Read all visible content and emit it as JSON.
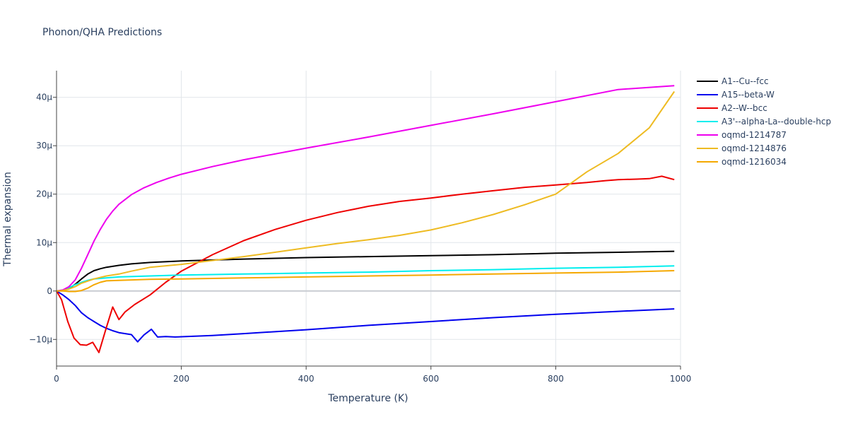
{
  "chart_data": {
    "type": "line",
    "title": "Phonon/QHA Predictions",
    "xlabel": "Temperature (K)",
    "ylabel": "Thermal expansion",
    "xlim": [
      0,
      1000
    ],
    "ylim": [
      -1.55e-05,
      4.55e-05
    ],
    "grid": true,
    "legend_position": "right",
    "x_ticks": [
      {
        "value": 0,
        "label": "0"
      },
      {
        "value": 200,
        "label": "200"
      },
      {
        "value": 400,
        "label": "400"
      },
      {
        "value": 600,
        "label": "600"
      },
      {
        "value": 800,
        "label": "800"
      },
      {
        "value": 1000,
        "label": "1000"
      }
    ],
    "y_ticks": [
      {
        "value": -1e-05,
        "label": "−10μ"
      },
      {
        "value": 0,
        "label": "0"
      },
      {
        "value": 1e-05,
        "label": "10μ"
      },
      {
        "value": 2e-05,
        "label": "20μ"
      },
      {
        "value": 3e-05,
        "label": "30μ"
      },
      {
        "value": 4e-05,
        "label": "40μ"
      }
    ],
    "series": [
      {
        "name": "A1--Cu--fcc",
        "color": "#000000",
        "points": [
          [
            0,
            0
          ],
          [
            10,
            1e-07
          ],
          [
            20,
            5e-07
          ],
          [
            30,
            1.4e-06
          ],
          [
            40,
            2.5e-06
          ],
          [
            50,
            3.5e-06
          ],
          [
            60,
            4.2e-06
          ],
          [
            70,
            4.6e-06
          ],
          [
            80,
            4.9e-06
          ],
          [
            100,
            5.3e-06
          ],
          [
            120,
            5.6e-06
          ],
          [
            150,
            5.9e-06
          ],
          [
            200,
            6.2e-06
          ],
          [
            300,
            6.6e-06
          ],
          [
            400,
            6.9e-06
          ],
          [
            500,
            7.1e-06
          ],
          [
            600,
            7.3e-06
          ],
          [
            700,
            7.5e-06
          ],
          [
            800,
            7.8e-06
          ],
          [
            900,
            8e-06
          ],
          [
            990,
            8.2e-06
          ]
        ]
      },
      {
        "name": "A15--beta-W",
        "color": "#0000ee",
        "points": [
          [
            0,
            0
          ],
          [
            10,
            -8e-07
          ],
          [
            20,
            -1.8e-06
          ],
          [
            30,
            -3e-06
          ],
          [
            40,
            -4.5e-06
          ],
          [
            50,
            -5.5e-06
          ],
          [
            60,
            -6.3e-06
          ],
          [
            70,
            -7.1e-06
          ],
          [
            80,
            -7.7e-06
          ],
          [
            90,
            -8.2e-06
          ],
          [
            100,
            -8.6e-06
          ],
          [
            110,
            -8.8e-06
          ],
          [
            120,
            -9e-06
          ],
          [
            130,
            -1.05e-05
          ],
          [
            140,
            -9.1e-06
          ],
          [
            152,
            -7.9e-06
          ],
          [
            162,
            -9.5e-06
          ],
          [
            175,
            -9.4e-06
          ],
          [
            190,
            -9.5e-06
          ],
          [
            250,
            -9.2e-06
          ],
          [
            300,
            -8.8e-06
          ],
          [
            400,
            -8e-06
          ],
          [
            500,
            -7.1e-06
          ],
          [
            600,
            -6.3e-06
          ],
          [
            700,
            -5.5e-06
          ],
          [
            800,
            -4.8e-06
          ],
          [
            900,
            -4.2e-06
          ],
          [
            990,
            -3.7e-06
          ]
        ]
      },
      {
        "name": "A2--W--bcc",
        "color": "#ee0000",
        "points": [
          [
            0,
            0
          ],
          [
            8,
            -1.8e-06
          ],
          [
            18,
            -6.3e-06
          ],
          [
            28,
            -9.7e-06
          ],
          [
            38,
            -1.11e-05
          ],
          [
            48,
            -1.12e-05
          ],
          [
            58,
            -1.06e-05
          ],
          [
            68,
            -1.27e-05
          ],
          [
            80,
            -7.5e-06
          ],
          [
            90,
            -3.3e-06
          ],
          [
            100,
            -5.9e-06
          ],
          [
            110,
            -4.3e-06
          ],
          [
            125,
            -2.8e-06
          ],
          [
            150,
            -8e-07
          ],
          [
            175,
            1.8e-06
          ],
          [
            200,
            4.1e-06
          ],
          [
            250,
            7.5e-06
          ],
          [
            300,
            1.04e-05
          ],
          [
            350,
            1.27e-05
          ],
          [
            400,
            1.46e-05
          ],
          [
            450,
            1.62e-05
          ],
          [
            500,
            1.75e-05
          ],
          [
            550,
            1.85e-05
          ],
          [
            600,
            1.92e-05
          ],
          [
            650,
            2e-05
          ],
          [
            700,
            2.07e-05
          ],
          [
            750,
            2.14e-05
          ],
          [
            800,
            2.19e-05
          ],
          [
            850,
            2.24e-05
          ],
          [
            880,
            2.28e-05
          ],
          [
            900,
            2.3e-05
          ],
          [
            930,
            2.31e-05
          ],
          [
            950,
            2.32e-05
          ],
          [
            970,
            2.37e-05
          ],
          [
            990,
            2.3e-05
          ]
        ]
      },
      {
        "name": "A3'--alpha-La--double-hcp",
        "color": "#00eeee",
        "points": [
          [
            0,
            0
          ],
          [
            10,
            2e-07
          ],
          [
            20,
            7e-07
          ],
          [
            30,
            1.3e-06
          ],
          [
            40,
            1.8e-06
          ],
          [
            50,
            2.2e-06
          ],
          [
            60,
            2.5e-06
          ],
          [
            80,
            2.7e-06
          ],
          [
            100,
            2.9e-06
          ],
          [
            150,
            3.1e-06
          ],
          [
            200,
            3.3e-06
          ],
          [
            300,
            3.5e-06
          ],
          [
            400,
            3.7e-06
          ],
          [
            500,
            3.9e-06
          ],
          [
            600,
            4.2e-06
          ],
          [
            700,
            4.4e-06
          ],
          [
            800,
            4.7e-06
          ],
          [
            900,
            4.9e-06
          ],
          [
            990,
            5.2e-06
          ]
        ]
      },
      {
        "name": "oqmd-1214787",
        "color": "#ee00ee",
        "points": [
          [
            0,
            0
          ],
          [
            10,
            2e-07
          ],
          [
            20,
            9e-07
          ],
          [
            30,
            2.3e-06
          ],
          [
            40,
            4.7e-06
          ],
          [
            50,
            7.5e-06
          ],
          [
            60,
            1.03e-05
          ],
          [
            70,
            1.27e-05
          ],
          [
            80,
            1.48e-05
          ],
          [
            90,
            1.65e-05
          ],
          [
            100,
            1.79e-05
          ],
          [
            120,
            1.99e-05
          ],
          [
            140,
            2.13e-05
          ],
          [
            160,
            2.24e-05
          ],
          [
            180,
            2.33e-05
          ],
          [
            200,
            2.41e-05
          ],
          [
            250,
            2.57e-05
          ],
          [
            300,
            2.71e-05
          ],
          [
            400,
            2.95e-05
          ],
          [
            500,
            3.18e-05
          ],
          [
            600,
            3.42e-05
          ],
          [
            700,
            3.66e-05
          ],
          [
            800,
            3.91e-05
          ],
          [
            900,
            4.16e-05
          ],
          [
            990,
            4.24e-05
          ]
        ]
      },
      {
        "name": "oqmd-1214876",
        "color": "#eebb22",
        "points": [
          [
            0,
            0
          ],
          [
            10,
            1e-07
          ],
          [
            20,
            4e-07
          ],
          [
            30,
            9e-07
          ],
          [
            40,
            1.6e-06
          ],
          [
            60,
            2.5e-06
          ],
          [
            80,
            3.1e-06
          ],
          [
            100,
            3.5e-06
          ],
          [
            120,
            4.1e-06
          ],
          [
            150,
            4.9e-06
          ],
          [
            200,
            5.5e-06
          ],
          [
            250,
            6.3e-06
          ],
          [
            300,
            7.1e-06
          ],
          [
            350,
            8e-06
          ],
          [
            400,
            8.9e-06
          ],
          [
            450,
            9.8e-06
          ],
          [
            500,
            1.06e-05
          ],
          [
            550,
            1.15e-05
          ],
          [
            600,
            1.26e-05
          ],
          [
            650,
            1.41e-05
          ],
          [
            700,
            1.58e-05
          ],
          [
            750,
            1.78e-05
          ],
          [
            800,
            2e-05
          ],
          [
            850,
            2.46e-05
          ],
          [
            900,
            2.84e-05
          ],
          [
            950,
            3.37e-05
          ],
          [
            990,
            4.12e-05
          ]
        ]
      },
      {
        "name": "oqmd-1216034",
        "color": "#f5a800",
        "points": [
          [
            0,
            0
          ],
          [
            10,
            0
          ],
          [
            20,
            -1e-07
          ],
          [
            30,
            -1e-07
          ],
          [
            40,
            1e-07
          ],
          [
            50,
            6e-07
          ],
          [
            60,
            1.3e-06
          ],
          [
            70,
            1.8e-06
          ],
          [
            80,
            2.1e-06
          ],
          [
            100,
            2.2e-06
          ],
          [
            150,
            2.4e-06
          ],
          [
            200,
            2.5e-06
          ],
          [
            300,
            2.7e-06
          ],
          [
            400,
            2.9e-06
          ],
          [
            500,
            3.1e-06
          ],
          [
            600,
            3.3e-06
          ],
          [
            700,
            3.5e-06
          ],
          [
            800,
            3.7e-06
          ],
          [
            900,
            3.9e-06
          ],
          [
            990,
            4.2e-06
          ]
        ]
      }
    ]
  }
}
